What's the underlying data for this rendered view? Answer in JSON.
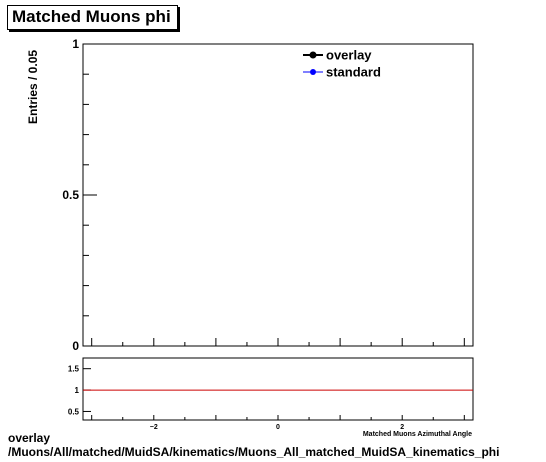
{
  "chart_data": [
    {
      "type": "line",
      "title": "Matched Muons phi",
      "ylabel": "Entries / 0.05",
      "xlabel": "",
      "xlim": [
        -3.14,
        3.14
      ],
      "ylim": [
        0,
        1
      ],
      "y_ticks": [
        {
          "value": 0,
          "label": "0"
        },
        {
          "value": 0.5,
          "label": "0.5"
        },
        {
          "value": 1,
          "label": "1"
        }
      ],
      "legend_placement": "top-right",
      "series": [
        {
          "name": "overlay",
          "color": "#000000",
          "marker": "circle",
          "values": []
        },
        {
          "name": "standard",
          "color": "#0000ff",
          "marker": "circle",
          "values": []
        }
      ]
    },
    {
      "type": "line",
      "xlabel": "Matched Muons Azimuthal Angle",
      "xlim": [
        -3.14,
        3.14
      ],
      "ylim": [
        0.3,
        1.75
      ],
      "x_ticks": [
        {
          "value": -2,
          "label": "−2"
        },
        {
          "value": 0,
          "label": "0"
        },
        {
          "value": 2,
          "label": "2"
        }
      ],
      "y_ticks": [
        {
          "value": 0.5,
          "label": "0.5"
        },
        {
          "value": 1,
          "label": "1"
        },
        {
          "value": 1.5,
          "label": "1.5"
        }
      ],
      "reference_line": {
        "y": 1,
        "color": "#cc0000"
      }
    }
  ],
  "footer": {
    "line1": "overlay",
    "line2": "/Muons/All/matched/MuidSA/kinematics/Muons_All_matched_MuidSA_kinematics_phi"
  }
}
